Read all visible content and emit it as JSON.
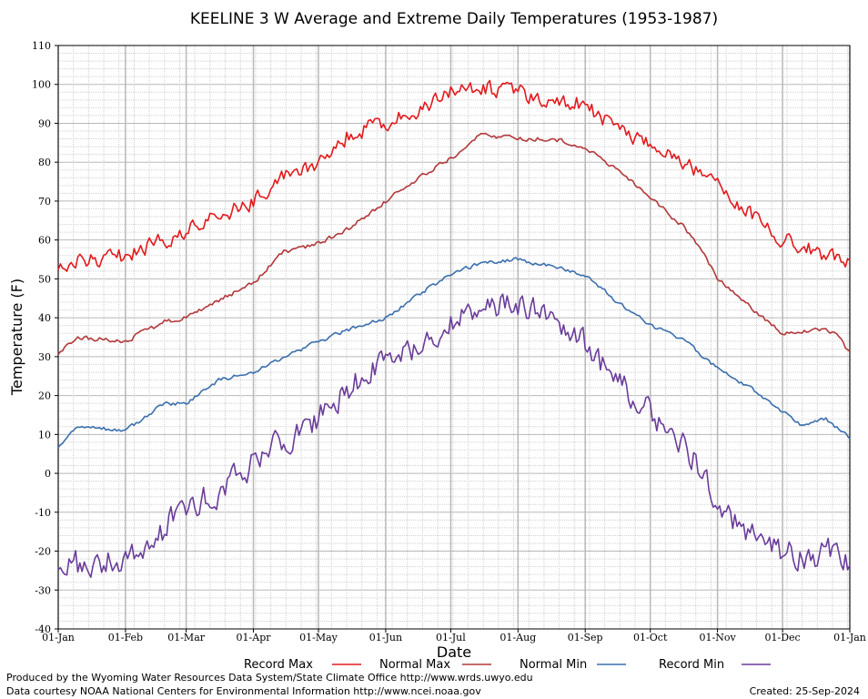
{
  "chart_data": {
    "type": "line",
    "title": "KEELINE 3 W Average and Extreme Daily Temperatures (1953-1987)",
    "xlabel": "Date",
    "ylabel": "Temperature (F)",
    "ylim": [
      -40,
      110
    ],
    "yticks": [
      -40,
      -30,
      -20,
      -10,
      0,
      10,
      20,
      30,
      40,
      50,
      60,
      70,
      80,
      90,
      100,
      110
    ],
    "xlim_days": [
      1,
      366
    ],
    "x_ticks": [
      {
        "day": 1,
        "label": "01-Jan"
      },
      {
        "day": 32,
        "label": "01-Feb"
      },
      {
        "day": 60,
        "label": "01-Mar"
      },
      {
        "day": 91,
        "label": "01-Apr"
      },
      {
        "day": 121,
        "label": "01-May"
      },
      {
        "day": 152,
        "label": "01-Jun"
      },
      {
        "day": 182,
        "label": "01-Jul"
      },
      {
        "day": 213,
        "label": "01-Aug"
      },
      {
        "day": 244,
        "label": "01-Sep"
      },
      {
        "day": 274,
        "label": "01-Oct"
      },
      {
        "day": 305,
        "label": "01-Nov"
      },
      {
        "day": 335,
        "label": "01-Dec"
      },
      {
        "day": 366,
        "label": "01-Jan"
      }
    ],
    "grid": true,
    "legend_position": "bottom",
    "series": [
      {
        "name": "Record Max",
        "color": "#e31a1c",
        "noise": 3.0,
        "anchors": [
          [
            1,
            54
          ],
          [
            20,
            55
          ],
          [
            32,
            56
          ],
          [
            60,
            62
          ],
          [
            91,
            70
          ],
          [
            105,
            77
          ],
          [
            121,
            80
          ],
          [
            135,
            87
          ],
          [
            152,
            90
          ],
          [
            165,
            93
          ],
          [
            182,
            98
          ],
          [
            195,
            99
          ],
          [
            213,
            98
          ],
          [
            230,
            96
          ],
          [
            244,
            95
          ],
          [
            259,
            88
          ],
          [
            274,
            85
          ],
          [
            290,
            80
          ],
          [
            305,
            75
          ],
          [
            320,
            67
          ],
          [
            335,
            60
          ],
          [
            350,
            57
          ],
          [
            366,
            55
          ]
        ]
      },
      {
        "name": "Normal Max",
        "color": "#b2383a",
        "noise": 0.8,
        "anchors": [
          [
            1,
            31
          ],
          [
            10,
            35
          ],
          [
            32,
            34
          ],
          [
            50,
            39
          ],
          [
            60,
            40
          ],
          [
            70,
            43
          ],
          [
            91,
            49
          ],
          [
            105,
            57
          ],
          [
            121,
            59
          ],
          [
            135,
            63
          ],
          [
            152,
            70
          ],
          [
            165,
            75
          ],
          [
            182,
            81
          ],
          [
            195,
            87
          ],
          [
            213,
            86
          ],
          [
            230,
            86
          ],
          [
            244,
            84
          ],
          [
            259,
            78
          ],
          [
            274,
            71
          ],
          [
            290,
            63
          ],
          [
            300,
            55
          ],
          [
            305,
            50
          ],
          [
            320,
            43
          ],
          [
            335,
            36
          ],
          [
            350,
            37
          ],
          [
            360,
            36
          ],
          [
            366,
            31
          ]
        ]
      },
      {
        "name": "Normal Min",
        "color": "#3b6fad",
        "noise": 0.7,
        "anchors": [
          [
            1,
            7
          ],
          [
            10,
            12
          ],
          [
            32,
            11
          ],
          [
            50,
            18
          ],
          [
            60,
            18
          ],
          [
            75,
            24
          ],
          [
            91,
            26
          ],
          [
            110,
            31
          ],
          [
            121,
            34
          ],
          [
            140,
            38
          ],
          [
            152,
            40
          ],
          [
            170,
            47
          ],
          [
            182,
            51
          ],
          [
            195,
            54
          ],
          [
            213,
            55
          ],
          [
            230,
            53
          ],
          [
            244,
            51
          ],
          [
            259,
            44
          ],
          [
            274,
            38
          ],
          [
            290,
            34
          ],
          [
            305,
            27
          ],
          [
            320,
            22
          ],
          [
            335,
            16
          ],
          [
            345,
            12
          ],
          [
            355,
            14
          ],
          [
            366,
            9
          ]
        ]
      },
      {
        "name": "Record Min",
        "color": "#6a3d9a",
        "noise": 5.0,
        "anchors": [
          [
            1,
            -22
          ],
          [
            15,
            -24
          ],
          [
            32,
            -22
          ],
          [
            45,
            -17
          ],
          [
            60,
            -8
          ],
          [
            75,
            -5
          ],
          [
            91,
            3
          ],
          [
            105,
            8
          ],
          [
            121,
            14
          ],
          [
            135,
            22
          ],
          [
            152,
            28
          ],
          [
            170,
            34
          ],
          [
            182,
            38
          ],
          [
            195,
            42
          ],
          [
            213,
            44
          ],
          [
            230,
            39
          ],
          [
            244,
            34
          ],
          [
            255,
            26
          ],
          [
            274,
            16
          ],
          [
            290,
            8
          ],
          [
            305,
            -8
          ],
          [
            320,
            -15
          ],
          [
            335,
            -20
          ],
          [
            350,
            -22
          ],
          [
            360,
            -18
          ],
          [
            366,
            -25
          ]
        ]
      }
    ]
  },
  "footer": {
    "left_line1": "Produced by the Wyoming Water Resources Data System/State Climate Office http://www.wrds.uwyo.edu",
    "left_line2": "Data courtesy NOAA National Centers for Environmental Information http://www.ncei.noaa.gov",
    "created": "Created:  25-Sep-2024"
  }
}
